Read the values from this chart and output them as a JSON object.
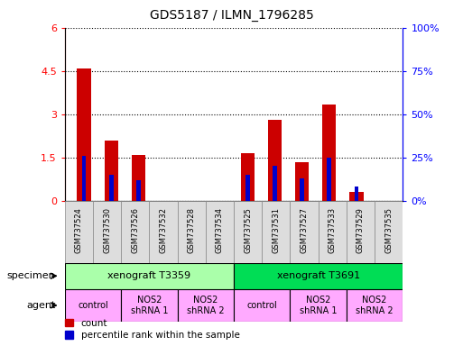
{
  "title": "GDS5187 / ILMN_1796285",
  "samples": [
    "GSM737524",
    "GSM737530",
    "GSM737526",
    "GSM737532",
    "GSM737528",
    "GSM737534",
    "GSM737525",
    "GSM737531",
    "GSM737527",
    "GSM737533",
    "GSM737529",
    "GSM737535"
  ],
  "counts": [
    4.6,
    2.1,
    1.6,
    0,
    0,
    0,
    1.65,
    2.8,
    1.35,
    3.35,
    0.3,
    0
  ],
  "percentile": [
    26,
    15,
    12,
    0,
    0,
    0,
    15,
    20,
    13,
    25,
    8,
    0
  ],
  "ylim_left": [
    0,
    6
  ],
  "ylim_right": [
    0,
    100
  ],
  "yticks_left": [
    0,
    1.5,
    3.0,
    4.5,
    6.0
  ],
  "ytick_labels_left": [
    "0",
    "1.5",
    "3",
    "4.5",
    "6"
  ],
  "yticks_right": [
    0,
    25,
    50,
    75,
    100
  ],
  "ytick_labels_right": [
    "0%",
    "25%",
    "50%",
    "75%",
    "100%"
  ],
  "bar_color": "#cc0000",
  "percentile_color": "#0000cc",
  "bar_width": 0.5,
  "specimen_groups": [
    {
      "label": "xenograft T3359",
      "start": 0,
      "end": 6,
      "color": "#aaffaa"
    },
    {
      "label": "xenograft T3691",
      "start": 6,
      "end": 12,
      "color": "#00dd55"
    }
  ],
  "agent_groups": [
    {
      "label": "control",
      "start": 0,
      "end": 2,
      "color": "#ffaaff"
    },
    {
      "label": "NOS2\nshRNA 1",
      "start": 2,
      "end": 4,
      "color": "#ffaaff"
    },
    {
      "label": "NOS2\nshRNA 2",
      "start": 4,
      "end": 6,
      "color": "#ffaaff"
    },
    {
      "label": "control",
      "start": 6,
      "end": 8,
      "color": "#ffaaff"
    },
    {
      "label": "NOS2\nshRNA 1",
      "start": 8,
      "end": 10,
      "color": "#ffaaff"
    },
    {
      "label": "NOS2\nshRNA 2",
      "start": 10,
      "end": 12,
      "color": "#ffaaff"
    }
  ],
  "legend_count_label": "count",
  "legend_percentile_label": "percentile rank within the sample",
  "specimen_label": "specimen",
  "agent_label": "agent"
}
